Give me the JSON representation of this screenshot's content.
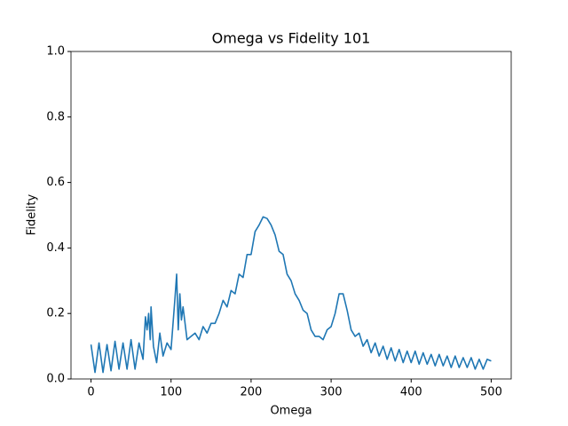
{
  "chart_data": {
    "type": "line",
    "title": "Omega vs Fidelity 101",
    "x_label": "Omega",
    "y_label": "Fidelity",
    "x": [
      0,
      5,
      10,
      15,
      20,
      25,
      30,
      35,
      40,
      45,
      50,
      55,
      60,
      65,
      68,
      70,
      72,
      74,
      75,
      78,
      82,
      86,
      90,
      95,
      100,
      105,
      107,
      109,
      111,
      113,
      115,
      118,
      120,
      125,
      130,
      135,
      140,
      145,
      150,
      155,
      160,
      165,
      170,
      175,
      180,
      185,
      190,
      195,
      200,
      205,
      210,
      215,
      220,
      225,
      230,
      235,
      240,
      245,
      250,
      255,
      260,
      265,
      270,
      275,
      280,
      285,
      290,
      295,
      300,
      305,
      310,
      315,
      320,
      325,
      330,
      335,
      340,
      345,
      350,
      355,
      360,
      365,
      370,
      375,
      380,
      385,
      390,
      395,
      400,
      405,
      410,
      415,
      420,
      425,
      430,
      435,
      440,
      445,
      450,
      455,
      460,
      465,
      470,
      475,
      480,
      485,
      490,
      495,
      500
    ],
    "series": [
      {
        "name": "Fidelity",
        "color": "#1f77b4",
        "values": [
          0.105,
          0.02,
          0.11,
          0.02,
          0.105,
          0.025,
          0.115,
          0.03,
          0.11,
          0.03,
          0.12,
          0.03,
          0.11,
          0.06,
          0.19,
          0.15,
          0.2,
          0.12,
          0.22,
          0.1,
          0.05,
          0.14,
          0.07,
          0.11,
          0.09,
          0.25,
          0.32,
          0.15,
          0.26,
          0.18,
          0.22,
          0.16,
          0.12,
          0.13,
          0.14,
          0.12,
          0.16,
          0.14,
          0.17,
          0.17,
          0.2,
          0.24,
          0.22,
          0.27,
          0.26,
          0.32,
          0.31,
          0.38,
          0.38,
          0.45,
          0.47,
          0.495,
          0.49,
          0.47,
          0.44,
          0.39,
          0.38,
          0.32,
          0.3,
          0.26,
          0.24,
          0.21,
          0.2,
          0.15,
          0.13,
          0.13,
          0.12,
          0.15,
          0.16,
          0.2,
          0.26,
          0.26,
          0.21,
          0.15,
          0.13,
          0.14,
          0.1,
          0.12,
          0.08,
          0.11,
          0.07,
          0.1,
          0.06,
          0.095,
          0.055,
          0.09,
          0.05,
          0.085,
          0.05,
          0.085,
          0.045,
          0.08,
          0.045,
          0.075,
          0.04,
          0.075,
          0.04,
          0.07,
          0.035,
          0.07,
          0.035,
          0.065,
          0.035,
          0.065,
          0.03,
          0.06,
          0.03,
          0.06,
          0.055
        ]
      }
    ],
    "xlim": [
      -25,
      525
    ],
    "ylim": [
      0,
      1
    ],
    "xticks": [
      0,
      100,
      200,
      300,
      400,
      500
    ],
    "yticks": [
      {
        "value": 0,
        "label": "0.0"
      },
      0.2,
      0.4,
      0.6,
      0.8,
      {
        "value": 1,
        "label": "1.0"
      }
    ],
    "grid": false
  }
}
